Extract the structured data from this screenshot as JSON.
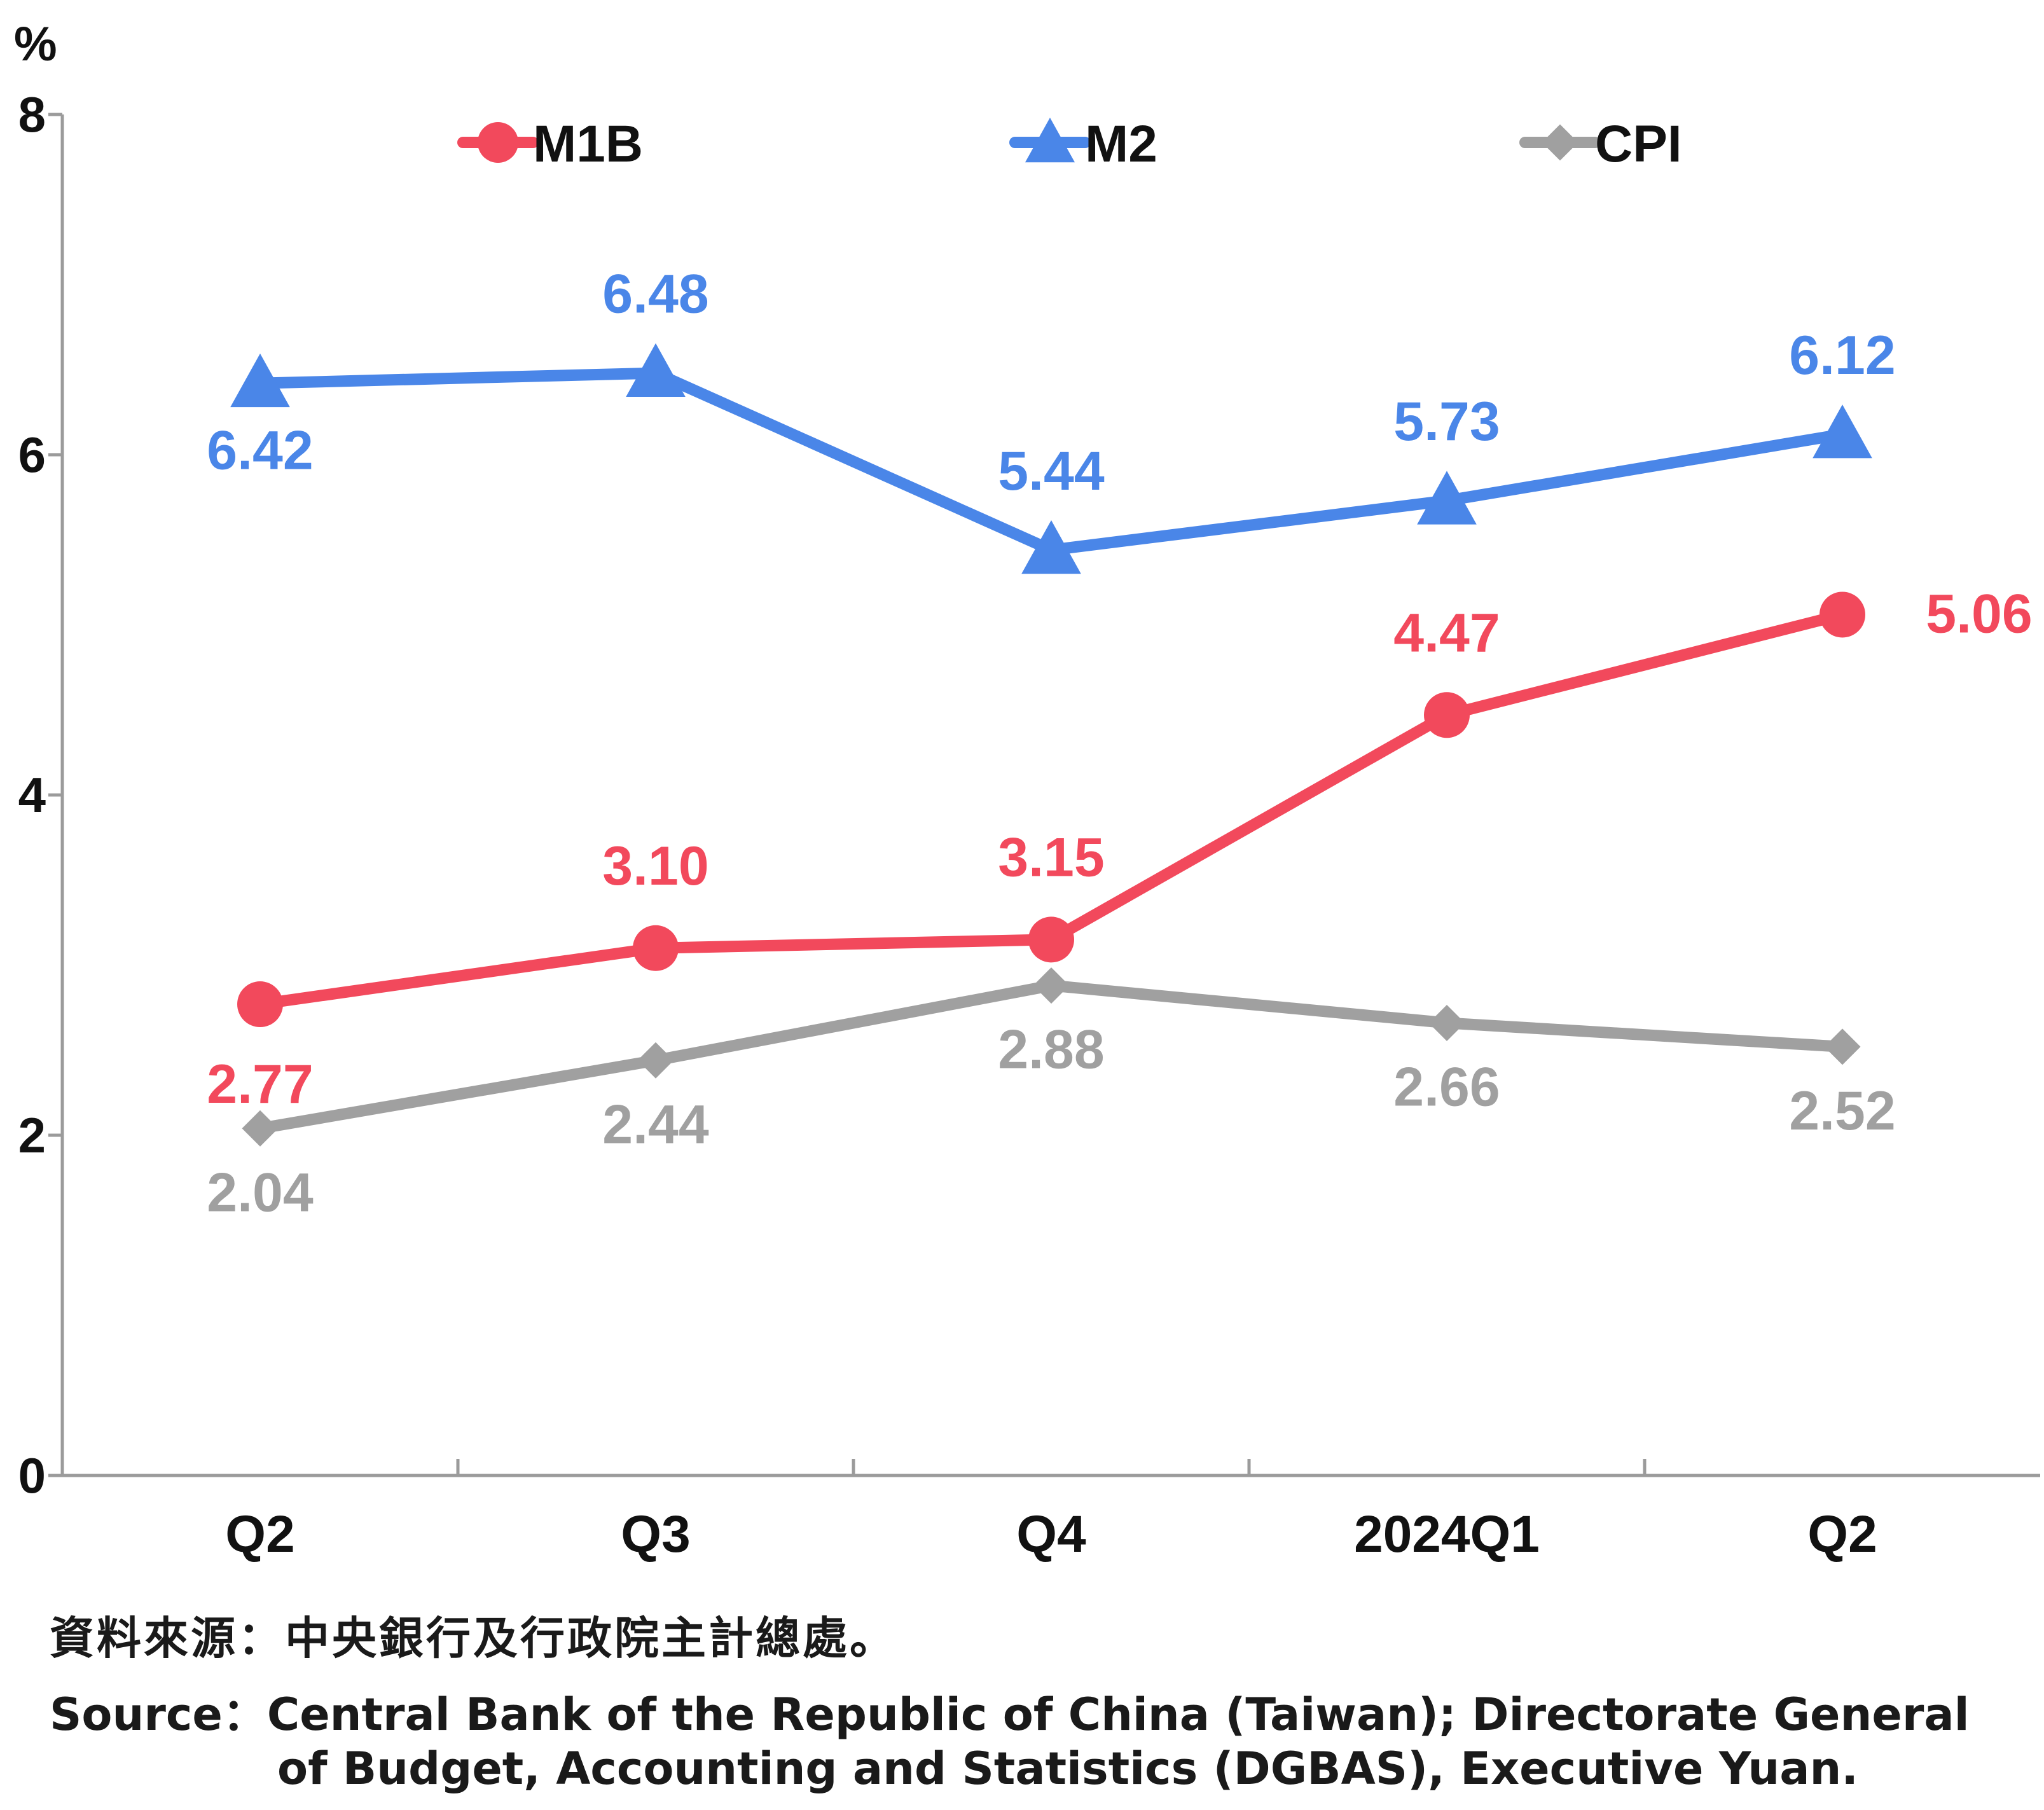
{
  "chart_data": {
    "type": "line",
    "ylabel": "%",
    "ylim": [
      0,
      8
    ],
    "yticks": [
      "0",
      "2",
      "4",
      "6",
      "8"
    ],
    "categories": [
      "Q2",
      "Q3",
      "Q4",
      "2024Q1",
      "Q2"
    ],
    "legend_placement": "top",
    "grid": false,
    "series": [
      {
        "name": "M1B",
        "color": "#F2495C",
        "marker": "circle",
        "values": [
          2.77,
          3.1,
          3.15,
          4.47,
          5.06
        ],
        "labels": [
          "2.77",
          "3.10",
          "3.15",
          "4.47",
          "5.06"
        ]
      },
      {
        "name": "M2",
        "color": "#4A86E8",
        "marker": "triangle",
        "values": [
          6.42,
          6.48,
          5.44,
          5.73,
          6.12
        ],
        "labels": [
          "6.42",
          "6.48",
          "5.44",
          "5.73",
          "6.12"
        ]
      },
      {
        "name": "CPI",
        "color": "#A0A0A0",
        "marker": "diamond",
        "values": [
          2.04,
          2.44,
          2.88,
          2.66,
          2.52
        ],
        "labels": [
          "2.04",
          "2.44",
          "2.88",
          "2.66",
          "2.52"
        ]
      }
    ],
    "axis_color": "#9B9B9B"
  },
  "source": {
    "zh": "資料來源：中央銀行及行政院主計總處。",
    "en_line1": "Source：Central Bank of the Republic of China (Taiwan); Directorate General",
    "en_line2": "of Budget, Accounting and Statistics (DGBAS), Executive Yuan."
  }
}
